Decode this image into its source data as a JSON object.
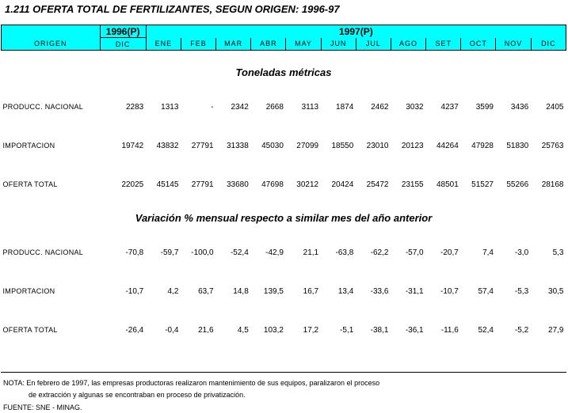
{
  "title": "1.211  OFERTA TOTAL DE FERTILIZANTES, SEGUN ORIGEN: 1996-97",
  "header": {
    "origin_label": "ORIGEN",
    "year_1996": "1996(P)",
    "year_1997": "1997(P)",
    "month_1996": "DIC",
    "months_1997": [
      "ENE",
      "FEB",
      "MAR",
      "ABR",
      "MAY",
      "JUN",
      "JUL",
      "AGO",
      "SET",
      "OCT",
      "NOV",
      "DIC"
    ]
  },
  "sections": [
    {
      "title": "Toneladas métricas",
      "rows": [
        {
          "label": "PRODUCC. NACIONAL",
          "values": [
            "2283",
            "1313",
            "-",
            "2342",
            "2668",
            "3113",
            "1874",
            "2462",
            "3032",
            "4237",
            "3599",
            "3436",
            "2405"
          ]
        },
        {
          "label": "IMPORTACION",
          "values": [
            "19742",
            "43832",
            "27791",
            "31338",
            "45030",
            "27099",
            "18550",
            "23010",
            "20123",
            "44264",
            "47928",
            "51830",
            "25763"
          ]
        },
        {
          "label": "OFERTA TOTAL",
          "values": [
            "22025",
            "45145",
            "27791",
            "33680",
            "47698",
            "30212",
            "20424",
            "25472",
            "23155",
            "48501",
            "51527",
            "55266",
            "28168"
          ]
        }
      ]
    },
    {
      "title": "Variación % mensual respecto a similar mes del año anterior",
      "rows": [
        {
          "label": "PRODUCC. NACIONAL",
          "values": [
            "-70,8",
            "-59,7",
            "-100,0",
            "-52,4",
            "-42,9",
            "21,1",
            "-63,8",
            "-62,2",
            "-57,0",
            "-20,7",
            "7,4",
            "-3,0",
            "5,3"
          ]
        },
        {
          "label": "IMPORTACION",
          "values": [
            "-10,7",
            "4,2",
            "63,7",
            "14,8",
            "139,5",
            "16,7",
            "13,4",
            "-33,6",
            "-31,1",
            "-10,7",
            "57,4",
            "-5,3",
            "30,5"
          ]
        },
        {
          "label": "OFERTA TOTAL",
          "values": [
            "-26,4",
            "-0,4",
            "21,6",
            "4,5",
            "103,2",
            "17,2",
            "-5,1",
            "-38,1",
            "-36,1",
            "-11,6",
            "52,4",
            "-5,2",
            "27,9"
          ]
        }
      ]
    }
  ],
  "notes": {
    "line1": "NOTA: En febrero de 1997, las empresas productoras realizaron mantenimiento de sus equipos, paralizaron el proceso",
    "line2": "de extracción y algunas se encontraban en proceso de privatización.",
    "source": "FUENTE: SNE - MINAG."
  }
}
